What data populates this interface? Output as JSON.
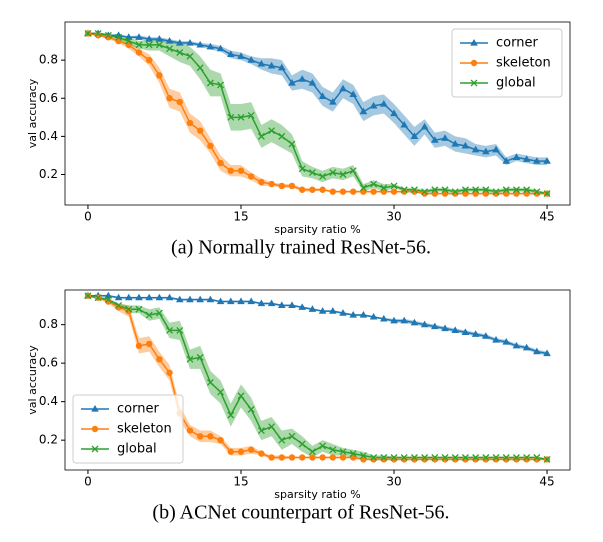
{
  "chart_data": [
    {
      "type": "line",
      "x_label": "sparsity ratio %",
      "y_label": "val accuracy",
      "caption": "(a) Normally trained ResNet-56.",
      "x": [
        0,
        1,
        2,
        3,
        4,
        5,
        6,
        7,
        8,
        9,
        10,
        11,
        12,
        13,
        14,
        15,
        16,
        17,
        18,
        19,
        20,
        21,
        22,
        23,
        24,
        25,
        26,
        27,
        28,
        29,
        30,
        31,
        32,
        33,
        34,
        35,
        36,
        37,
        38,
        39,
        40,
        41,
        42,
        43,
        44,
        45
      ],
      "xlim": [
        -2.25,
        47.25
      ],
      "xticks": [
        0,
        15,
        30,
        45
      ],
      "ylim": [
        0.04,
        1.0
      ],
      "yticks": [
        0.2,
        0.4,
        0.6,
        0.8
      ],
      "legend": "upper right",
      "series": [
        {
          "name": "corner",
          "color": "#1f77b4",
          "marker": "triangle",
          "values": [
            0.94,
            0.94,
            0.93,
            0.93,
            0.92,
            0.92,
            0.91,
            0.91,
            0.9,
            0.89,
            0.89,
            0.88,
            0.87,
            0.86,
            0.83,
            0.82,
            0.8,
            0.78,
            0.77,
            0.76,
            0.68,
            0.7,
            0.68,
            0.61,
            0.58,
            0.65,
            0.62,
            0.53,
            0.56,
            0.57,
            0.52,
            0.46,
            0.4,
            0.45,
            0.38,
            0.39,
            0.36,
            0.35,
            0.33,
            0.32,
            0.33,
            0.27,
            0.29,
            0.28,
            0.27,
            0.27
          ],
          "errors": [
            0.005,
            0.005,
            0.005,
            0.005,
            0.005,
            0.01,
            0.01,
            0.01,
            0.01,
            0.01,
            0.01,
            0.01,
            0.015,
            0.015,
            0.02,
            0.02,
            0.02,
            0.03,
            0.04,
            0.04,
            0.04,
            0.05,
            0.05,
            0.05,
            0.05,
            0.05,
            0.05,
            0.05,
            0.05,
            0.05,
            0.05,
            0.05,
            0.05,
            0.04,
            0.04,
            0.04,
            0.04,
            0.04,
            0.03,
            0.03,
            0.03,
            0.02,
            0.02,
            0.02,
            0.02,
            0.02
          ]
        },
        {
          "name": "skeleton",
          "color": "#ff7f0e",
          "marker": "circle",
          "values": [
            0.94,
            0.93,
            0.92,
            0.9,
            0.88,
            0.84,
            0.8,
            0.72,
            0.6,
            0.58,
            0.47,
            0.43,
            0.35,
            0.26,
            0.22,
            0.22,
            0.19,
            0.16,
            0.15,
            0.14,
            0.14,
            0.12,
            0.12,
            0.12,
            0.11,
            0.11,
            0.11,
            0.11,
            0.11,
            0.11,
            0.11,
            0.11,
            0.11,
            0.1,
            0.1,
            0.1,
            0.1,
            0.1,
            0.1,
            0.1,
            0.1,
            0.1,
            0.1,
            0.1,
            0.1,
            0.1
          ],
          "errors": [
            0.005,
            0.005,
            0.01,
            0.01,
            0.02,
            0.02,
            0.03,
            0.04,
            0.05,
            0.05,
            0.05,
            0.05,
            0.04,
            0.04,
            0.03,
            0.03,
            0.02,
            0.02,
            0.01,
            0.01,
            0.01,
            0.01,
            0.01,
            0.005,
            0.005,
            0.005,
            0.005,
            0.005,
            0.005,
            0.005,
            0.005,
            0.005,
            0.005,
            0.005,
            0.005,
            0.005,
            0.005,
            0.005,
            0.005,
            0.005,
            0.005,
            0.005,
            0.005,
            0.005,
            0.005,
            0.005
          ]
        },
        {
          "name": "global",
          "color": "#2ca02c",
          "marker": "x",
          "values": [
            0.94,
            0.94,
            0.93,
            0.92,
            0.9,
            0.88,
            0.88,
            0.88,
            0.86,
            0.84,
            0.82,
            0.76,
            0.68,
            0.67,
            0.5,
            0.5,
            0.51,
            0.4,
            0.43,
            0.4,
            0.36,
            0.23,
            0.21,
            0.19,
            0.21,
            0.2,
            0.22,
            0.13,
            0.15,
            0.13,
            0.14,
            0.12,
            0.12,
            0.11,
            0.12,
            0.12,
            0.11,
            0.12,
            0.12,
            0.12,
            0.11,
            0.12,
            0.12,
            0.12,
            0.11,
            0.1
          ],
          "errors": [
            0.005,
            0.005,
            0.01,
            0.01,
            0.02,
            0.02,
            0.03,
            0.03,
            0.04,
            0.05,
            0.05,
            0.06,
            0.07,
            0.06,
            0.07,
            0.07,
            0.07,
            0.06,
            0.06,
            0.06,
            0.05,
            0.04,
            0.03,
            0.03,
            0.03,
            0.03,
            0.03,
            0.02,
            0.02,
            0.02,
            0.01,
            0.01,
            0.01,
            0.01,
            0.01,
            0.01,
            0.01,
            0.01,
            0.01,
            0.01,
            0.01,
            0.01,
            0.01,
            0.01,
            0.01,
            0.005
          ]
        }
      ]
    },
    {
      "type": "line",
      "x_label": "sparsity ratio %",
      "y_label": "val accuracy",
      "caption": "(b) ACNet counterpart of ResNet-56.",
      "x": [
        0,
        1,
        2,
        3,
        4,
        5,
        6,
        7,
        8,
        9,
        10,
        11,
        12,
        13,
        14,
        15,
        16,
        17,
        18,
        19,
        20,
        21,
        22,
        23,
        24,
        25,
        26,
        27,
        28,
        29,
        30,
        31,
        32,
        33,
        34,
        35,
        36,
        37,
        38,
        39,
        40,
        41,
        42,
        43,
        44,
        45
      ],
      "xlim": [
        -2.25,
        47.25
      ],
      "xticks": [
        0,
        15,
        30,
        45
      ],
      "ylim": [
        0.045,
        0.98
      ],
      "yticks": [
        0.2,
        0.4,
        0.6,
        0.8
      ],
      "legend": "lower left",
      "series": [
        {
          "name": "corner",
          "color": "#1f77b4",
          "marker": "triangle",
          "values": [
            0.95,
            0.95,
            0.95,
            0.94,
            0.94,
            0.94,
            0.94,
            0.94,
            0.94,
            0.93,
            0.93,
            0.93,
            0.93,
            0.92,
            0.92,
            0.92,
            0.92,
            0.91,
            0.91,
            0.9,
            0.9,
            0.89,
            0.88,
            0.87,
            0.87,
            0.86,
            0.85,
            0.85,
            0.84,
            0.83,
            0.82,
            0.82,
            0.81,
            0.8,
            0.79,
            0.78,
            0.77,
            0.76,
            0.75,
            0.74,
            0.72,
            0.71,
            0.69,
            0.68,
            0.66,
            0.65
          ],
          "errors": [
            0.005,
            0.005,
            0.005,
            0.005,
            0.005,
            0.005,
            0.005,
            0.005,
            0.005,
            0.005,
            0.005,
            0.005,
            0.005,
            0.005,
            0.005,
            0.005,
            0.005,
            0.005,
            0.005,
            0.005,
            0.005,
            0.005,
            0.005,
            0.005,
            0.005,
            0.005,
            0.005,
            0.005,
            0.005,
            0.005,
            0.01,
            0.01,
            0.01,
            0.01,
            0.01,
            0.01,
            0.01,
            0.01,
            0.01,
            0.01,
            0.01,
            0.01,
            0.01,
            0.01,
            0.01,
            0.01
          ]
        },
        {
          "name": "skeleton",
          "color": "#ff7f0e",
          "marker": "circle",
          "values": [
            0.95,
            0.94,
            0.92,
            0.89,
            0.87,
            0.69,
            0.7,
            0.62,
            0.55,
            0.34,
            0.25,
            0.22,
            0.22,
            0.2,
            0.14,
            0.14,
            0.15,
            0.13,
            0.11,
            0.11,
            0.11,
            0.11,
            0.11,
            0.11,
            0.11,
            0.11,
            0.11,
            0.1,
            0.1,
            0.1,
            0.1,
            0.1,
            0.1,
            0.1,
            0.1,
            0.1,
            0.1,
            0.1,
            0.1,
            0.1,
            0.1,
            0.1,
            0.1,
            0.1,
            0.1,
            0.1
          ],
          "errors": [
            0.005,
            0.005,
            0.01,
            0.02,
            0.03,
            0.04,
            0.04,
            0.04,
            0.04,
            0.04,
            0.03,
            0.03,
            0.03,
            0.02,
            0.02,
            0.02,
            0.02,
            0.01,
            0.01,
            0.01,
            0.005,
            0.005,
            0.005,
            0.005,
            0.005,
            0.005,
            0.005,
            0.005,
            0.005,
            0.005,
            0.005,
            0.005,
            0.005,
            0.005,
            0.005,
            0.005,
            0.005,
            0.005,
            0.005,
            0.005,
            0.005,
            0.005,
            0.005,
            0.005,
            0.005,
            0.005
          ]
        },
        {
          "name": "global",
          "color": "#2ca02c",
          "marker": "x",
          "values": [
            0.95,
            0.94,
            0.93,
            0.9,
            0.88,
            0.88,
            0.85,
            0.86,
            0.77,
            0.77,
            0.62,
            0.63,
            0.5,
            0.45,
            0.33,
            0.43,
            0.36,
            0.25,
            0.27,
            0.2,
            0.22,
            0.18,
            0.14,
            0.17,
            0.15,
            0.14,
            0.13,
            0.12,
            0.11,
            0.11,
            0.11,
            0.11,
            0.11,
            0.11,
            0.11,
            0.11,
            0.11,
            0.11,
            0.11,
            0.11,
            0.11,
            0.11,
            0.11,
            0.11,
            0.11,
            0.1
          ],
          "errors": [
            0.005,
            0.005,
            0.01,
            0.01,
            0.02,
            0.02,
            0.03,
            0.03,
            0.04,
            0.05,
            0.05,
            0.06,
            0.06,
            0.06,
            0.06,
            0.06,
            0.06,
            0.05,
            0.05,
            0.05,
            0.04,
            0.04,
            0.03,
            0.03,
            0.03,
            0.02,
            0.02,
            0.02,
            0.01,
            0.01,
            0.005,
            0.005,
            0.005,
            0.005,
            0.005,
            0.005,
            0.005,
            0.005,
            0.005,
            0.005,
            0.005,
            0.005,
            0.005,
            0.005,
            0.005,
            0.005
          ]
        }
      ]
    }
  ]
}
